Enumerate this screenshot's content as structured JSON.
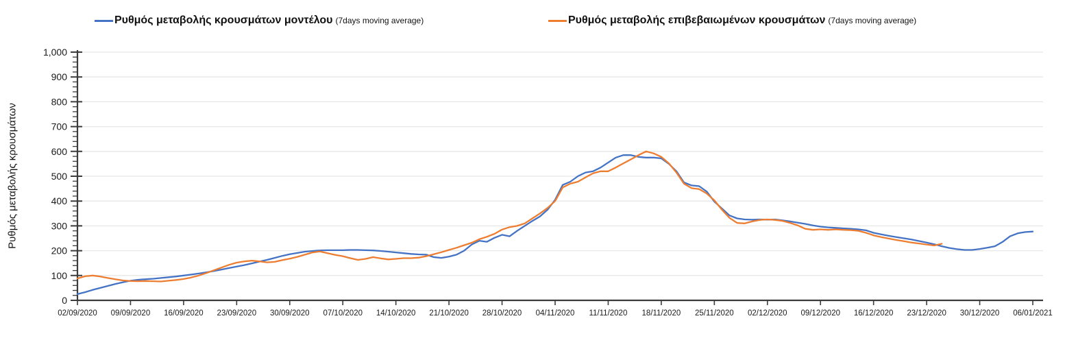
{
  "chart_data": {
    "type": "line",
    "title": "",
    "ylabel": "Ρυθμός μεταβολής κρουσμάτων",
    "xlabel": "",
    "ylim": [
      0,
      1000
    ],
    "y_major_step": 100,
    "y_minor_step": 20,
    "grid": "horizontal",
    "legend_position": "top",
    "days_total": 127,
    "x_start": "02/09/2020",
    "x_end": "06/01/2021",
    "x_unit": "day",
    "y_tick_labels": [
      "0",
      "100",
      "200",
      "300",
      "400",
      "500",
      "600",
      "700",
      "800",
      "900",
      "1,000"
    ],
    "x_tick_labels": [
      "02/09/2020",
      "09/09/2020",
      "16/09/2020",
      "23/09/2020",
      "30/09/2020",
      "07/10/2020",
      "14/10/2020",
      "21/10/2020",
      "28/10/2020",
      "04/11/2020",
      "11/11/2020",
      "18/11/2020",
      "25/11/2020",
      "02/12/2020",
      "09/12/2020",
      "16/12/2020",
      "23/12/2020",
      "30/12/2020",
      "06/01/2021"
    ],
    "series": [
      {
        "name": "Ρυθμός μεταβολής κρουσμάτων μοντέλου",
        "suffix": "(7days moving average)",
        "color": "#4472C4",
        "values": [
          25,
          33,
          42,
          50,
          58,
          66,
          73,
          79,
          83,
          85,
          87,
          90,
          93,
          96,
          100,
          104,
          108,
          113,
          118,
          124,
          130,
          136,
          142,
          149,
          156,
          163,
          171,
          179,
          186,
          191,
          196,
          199,
          201,
          202,
          202,
          202,
          203,
          203,
          202,
          201,
          199,
          196,
          193,
          190,
          187,
          185,
          184,
          174,
          171,
          176,
          184,
          200,
          225,
          240,
          236,
          252,
          264,
          258,
          280,
          300,
          320,
          338,
          365,
          405,
          465,
          478,
          500,
          515,
          520,
          535,
          555,
          575,
          585,
          585,
          578,
          575,
          575,
          572,
          550,
          520,
          475,
          463,
          460,
          438,
          398,
          370,
          342,
          330,
          326,
          325,
          326,
          325,
          326,
          322,
          318,
          313,
          308,
          302,
          297,
          294,
          292,
          290,
          288,
          286,
          282,
          272,
          266,
          260,
          255,
          250,
          245,
          239,
          233,
          226,
          218,
          211,
          206,
          203,
          203,
          207,
          212,
          218,
          235,
          258,
          270,
          275,
          277
        ]
      },
      {
        "name": "Ρυθμός μεταβολής επιβεβαιωμένων κρουσμάτων",
        "suffix": "(7days moving average)",
        "color": "#ED7D31",
        "values": [
          88,
          97,
          100,
          96,
          90,
          85,
          80,
          78,
          77,
          78,
          77,
          76,
          79,
          82,
          86,
          92,
          100,
          110,
          121,
          132,
          143,
          152,
          157,
          160,
          157,
          153,
          155,
          162,
          168,
          175,
          184,
          193,
          197,
          190,
          183,
          178,
          170,
          163,
          167,
          174,
          169,
          165,
          167,
          170,
          170,
          172,
          178,
          186,
          194,
          203,
          212,
          222,
          232,
          246,
          256,
          268,
          285,
          295,
          300,
          310,
          330,
          350,
          372,
          400,
          455,
          470,
          478,
          495,
          512,
          520,
          520,
          535,
          552,
          568,
          585,
          600,
          592,
          578,
          552,
          515,
          470,
          452,
          448,
          430,
          403,
          365,
          332,
          312,
          310,
          318,
          324,
          326,
          324,
          320,
          312,
          302,
          288,
          284,
          286,
          284,
          286,
          284,
          283,
          280,
          272,
          262,
          255,
          249,
          243,
          238,
          233,
          229,
          225,
          221,
          228
        ]
      }
    ]
  }
}
